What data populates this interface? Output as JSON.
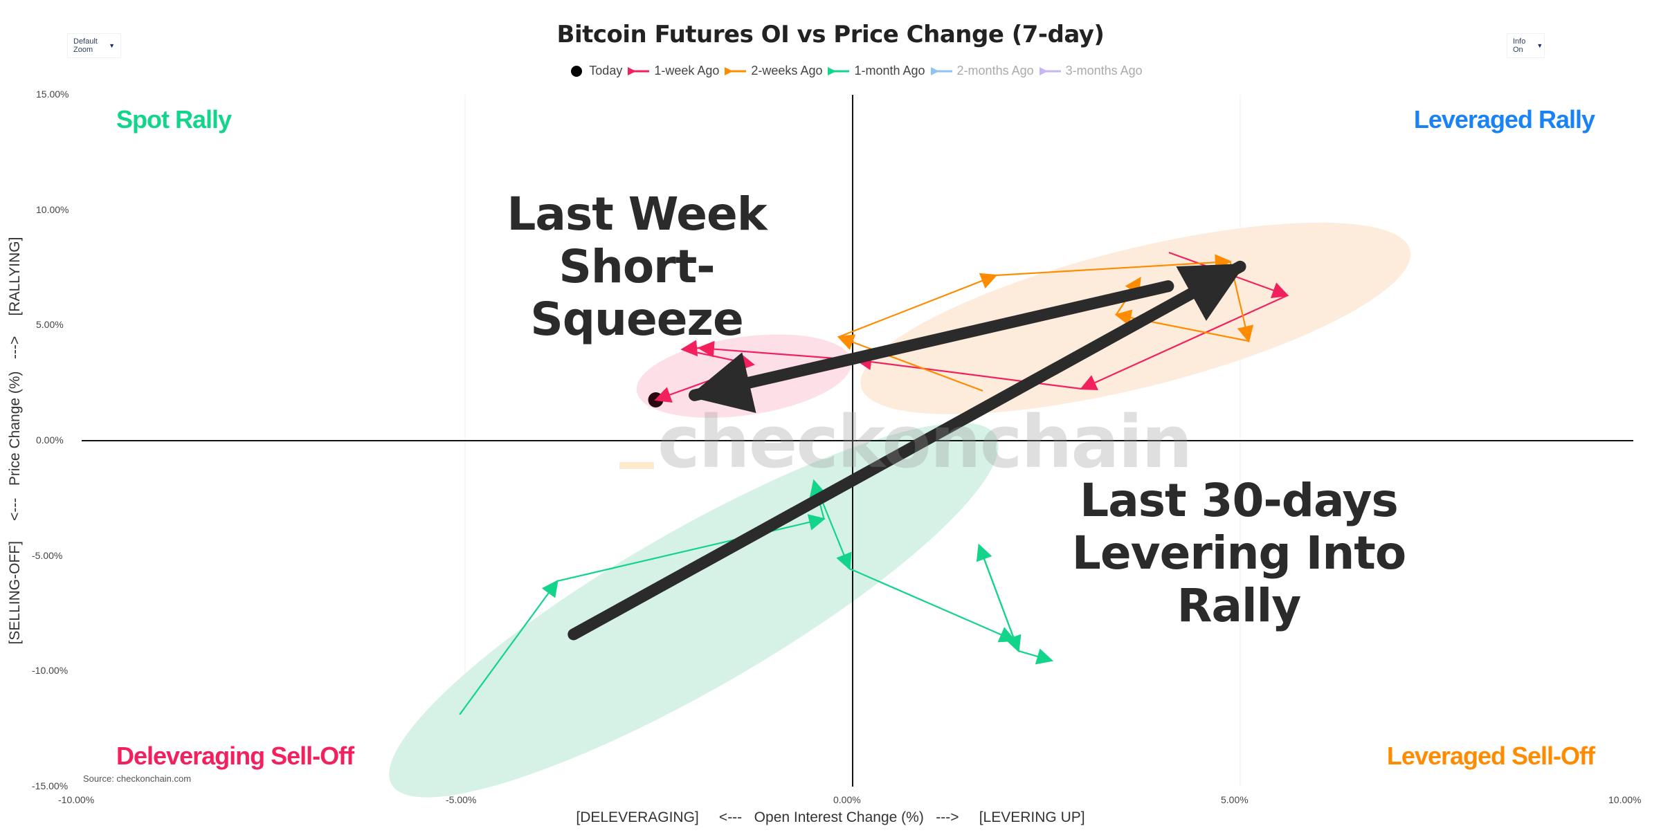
{
  "controls": {
    "zoom_dropdown": {
      "label": "Default Zoom",
      "caret": "▼"
    },
    "info_dropdown": {
      "label": "Info On",
      "caret": "▼"
    }
  },
  "quadrants": {
    "top_left": {
      "label": "Spot Rally",
      "color": "#12d48a"
    },
    "top_right": {
      "label": "Leveraged Rally",
      "color": "#1a82f7"
    },
    "bottom_left": {
      "label": "Deleveraging Sell-Off",
      "color": "#f2215e"
    },
    "bottom_right": {
      "label": "Leveraged Sell-Off",
      "color": "#ff8c00"
    }
  },
  "annotations": {
    "short_squeeze": {
      "line1": "Last Week",
      "line2": "Short-Squeeze"
    },
    "levering": {
      "line1": "Last 30-days",
      "line2": "Levering Into Rally"
    }
  },
  "watermark": "checkonchain",
  "source": "Source: checkonchain.com",
  "chart_data": {
    "type": "scatter",
    "title": "Bitcoin Futures OI vs Price Change (7-day)",
    "xlabel": "[DELEVERAGING]     <---   Open Interest Change (%)   --->     [LEVERING UP]",
    "ylabel": "[SELLING-OFF]     <---   Price Change (%)   --->     [RALLYING]",
    "xlim": [
      -10,
      10
    ],
    "ylim": [
      -15,
      15
    ],
    "x_ticks": [
      "-10.00%",
      "-5.00%",
      "0.00%",
      "5.00%",
      "10.00%"
    ],
    "y_ticks": [
      "15.00%",
      "10.00%",
      "5.00%",
      "0.00%",
      "-5.00%",
      "-10.00%",
      "-15.00%"
    ],
    "legend_position": "top-center",
    "grid": false,
    "legend": [
      {
        "name": "Today",
        "color": "#000000",
        "marker": "dot",
        "visible": true
      },
      {
        "name": "1-week Ago",
        "color": "#f2215e",
        "marker": "arrow-line",
        "visible": true
      },
      {
        "name": "2-weeks Ago",
        "color": "#ff8c00",
        "marker": "arrow-line",
        "visible": true
      },
      {
        "name": "1-month Ago",
        "color": "#12d48a",
        "marker": "arrow-line",
        "visible": true
      },
      {
        "name": "2-months Ago",
        "color": "#8ec3f5",
        "marker": "arrow-line",
        "visible": false
      },
      {
        "name": "3-months Ago",
        "color": "#c7b6f7",
        "marker": "arrow-line",
        "visible": false
      }
    ],
    "series": [
      {
        "name": "Today",
        "color": "#2a0a12",
        "points": [
          [
            -2.54,
            1.77
          ]
        ]
      },
      {
        "name": "1-week Ago",
        "color": "#f2215e",
        "points": [
          [
            4.08,
            8.16
          ],
          [
            5.61,
            6.3
          ],
          [
            2.95,
            2.25
          ],
          [
            0.05,
            3.5
          ],
          [
            -1.98,
            4.02
          ],
          [
            -2.2,
            3.96
          ],
          [
            -1.28,
            3.3
          ],
          [
            -2.54,
            1.77
          ]
        ]
      },
      {
        "name": "2-weeks Ago",
        "color": "#ff8c00",
        "points": [
          [
            1.68,
            2.16
          ],
          [
            -0.18,
            4.5
          ],
          [
            1.85,
            7.17
          ],
          [
            4.87,
            7.77
          ],
          [
            5.11,
            4.32
          ],
          [
            3.4,
            5.46
          ],
          [
            3.71,
            7.05
          ]
        ]
      },
      {
        "name": "1-month Ago",
        "color": "#12d48a",
        "points": [
          [
            -5.07,
            -11.88
          ],
          [
            -3.81,
            -6.09
          ],
          [
            -0.37,
            -3.39
          ],
          [
            -0.5,
            -1.74
          ],
          [
            -0.04,
            -5.55
          ],
          [
            2.09,
            -8.67
          ],
          [
            1.63,
            -4.53
          ],
          [
            2.14,
            -9.12
          ],
          [
            2.57,
            -9.54
          ]
        ]
      }
    ],
    "highlight_ellipses": [
      {
        "series": "1-week Ago",
        "color": "#fde0e7",
        "cx": -1.4,
        "cy": 2.8,
        "rx": 1.4,
        "ry": 1.7,
        "rotate": -8
      },
      {
        "series": "2-weeks Ago",
        "color": "#fdecdb",
        "cx": 3.65,
        "cy": 5.3,
        "rx": 3.65,
        "ry": 3.0,
        "rotate": -14
      },
      {
        "series": "1-month Ago",
        "color": "#d6f2e7",
        "cx": -2.05,
        "cy": -7.35,
        "rx": 4.5,
        "ry": 3.6,
        "rotate": -30
      }
    ],
    "overlay_arrows": [
      {
        "label": "Last Week Short-Squeeze",
        "from": [
          4.07,
          6.7
        ],
        "to": [
          -2.04,
          1.97
        ],
        "color": "#2b2b2b"
      },
      {
        "label": "Last 30-days Levering Into Rally",
        "from": [
          -3.6,
          -8.4
        ],
        "to": [
          5.0,
          7.55
        ],
        "color": "#2b2b2b"
      }
    ]
  }
}
